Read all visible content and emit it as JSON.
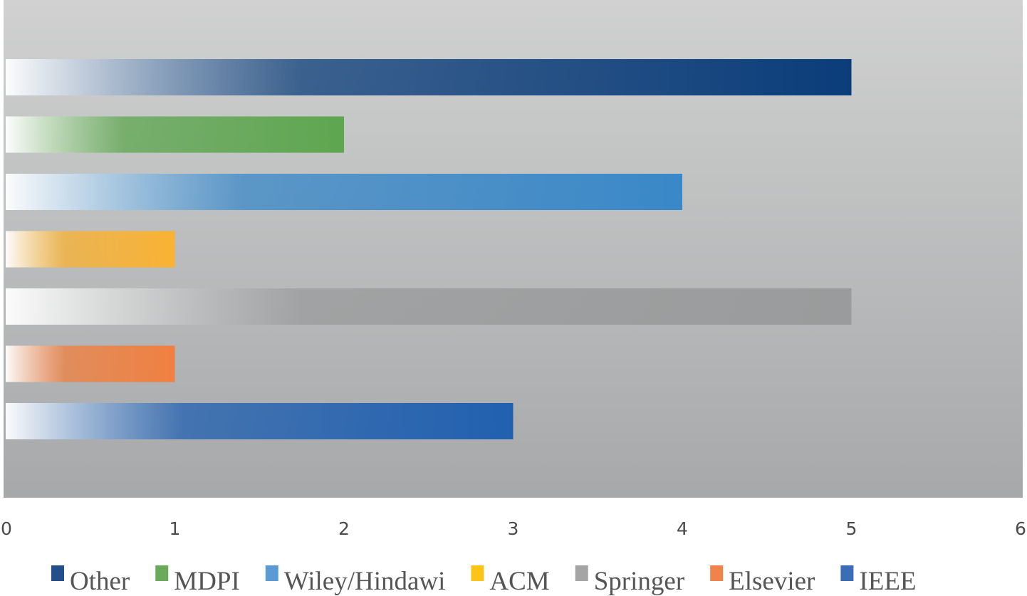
{
  "chart_data": {
    "type": "bar",
    "orientation": "horizontal",
    "grid": false,
    "legend_position": "bottom",
    "xlim": [
      0,
      6
    ],
    "x_ticks": [
      "0",
      "1",
      "2",
      "3",
      "4",
      "5",
      "6"
    ],
    "series": [
      {
        "name": "Other",
        "value": 5,
        "color": "#0b3d7a"
      },
      {
        "name": "MDPI",
        "value": 2,
        "color": "#5ea650"
      },
      {
        "name": "Wiley/Hindawi",
        "value": 4,
        "color": "#3a88c8"
      },
      {
        "name": "ACM",
        "value": 1,
        "color": "#f9b233"
      },
      {
        "name": "Springer",
        "value": 5,
        "color": "#999b9c"
      },
      {
        "name": "Elsevier",
        "value": 1,
        "color": "#f08040"
      },
      {
        "name": "IEEE",
        "value": 3,
        "color": "#2160b0"
      }
    ],
    "legend_markers": {
      "Other": "#23508a",
      "MDPI": "#6aaa5a",
      "Wiley/Hindawi": "#5b9bd5",
      "ACM": "#fcc419",
      "Springer": "#a5a5a5",
      "Elsevier": "#f0824a",
      "IEEE": "#3a6cb8"
    }
  }
}
